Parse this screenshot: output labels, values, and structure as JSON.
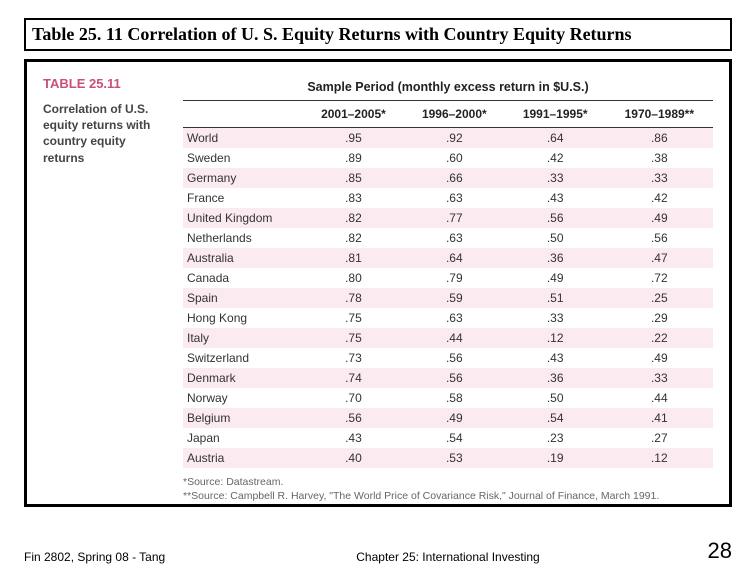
{
  "slide": {
    "title": "Table 25. 11 Correlation of U. S. Equity Returns with Country Equity Returns",
    "footer_left": "Fin 2802, Spring 08 - Tang",
    "footer_center": "Chapter 25: International Investing",
    "page_number": "28"
  },
  "table": {
    "label_number": "TABLE 25.11",
    "label_desc_line1": "Correlation of U.S.",
    "label_desc_line2": "equity returns with",
    "label_desc_line3": "country equity",
    "label_desc_line4": "returns",
    "sample_period_header": "Sample Period (monthly excess return in $U.S.)",
    "columns": [
      "2001–2005*",
      "1996–2000*",
      "1991–1995*",
      "1970–1989**"
    ],
    "rows": [
      {
        "country": "World",
        "v": [
          ".95",
          ".92",
          ".64",
          ".86"
        ]
      },
      {
        "country": "Sweden",
        "v": [
          ".89",
          ".60",
          ".42",
          ".38"
        ]
      },
      {
        "country": "Germany",
        "v": [
          ".85",
          ".66",
          ".33",
          ".33"
        ]
      },
      {
        "country": "France",
        "v": [
          ".83",
          ".63",
          ".43",
          ".42"
        ]
      },
      {
        "country": "United Kingdom",
        "v": [
          ".82",
          ".77",
          ".56",
          ".49"
        ]
      },
      {
        "country": "Netherlands",
        "v": [
          ".82",
          ".63",
          ".50",
          ".56"
        ]
      },
      {
        "country": "Australia",
        "v": [
          ".81",
          ".64",
          ".36",
          ".47"
        ]
      },
      {
        "country": "Canada",
        "v": [
          ".80",
          ".79",
          ".49",
          ".72"
        ]
      },
      {
        "country": "Spain",
        "v": [
          ".78",
          ".59",
          ".51",
          ".25"
        ]
      },
      {
        "country": "Hong Kong",
        "v": [
          ".75",
          ".63",
          ".33",
          ".29"
        ]
      },
      {
        "country": "Italy",
        "v": [
          ".75",
          ".44",
          ".12",
          ".22"
        ]
      },
      {
        "country": "Switzerland",
        "v": [
          ".73",
          ".56",
          ".43",
          ".49"
        ]
      },
      {
        "country": "Denmark",
        "v": [
          ".74",
          ".56",
          ".36",
          ".33"
        ]
      },
      {
        "country": "Norway",
        "v": [
          ".70",
          ".58",
          ".50",
          ".44"
        ]
      },
      {
        "country": "Belgium",
        "v": [
          ".56",
          ".49",
          ".54",
          ".41"
        ]
      },
      {
        "country": "Japan",
        "v": [
          ".43",
          ".54",
          ".23",
          ".27"
        ]
      },
      {
        "country": "Austria",
        "v": [
          ".40",
          ".53",
          ".19",
          ".12"
        ]
      }
    ],
    "footnotes": [
      "*Source: Datastream.",
      "**Source: Campbell R. Harvey, \"The World Price of Covariance Risk,\" Journal of Finance, March 1991."
    ],
    "styling": {
      "type": "table",
      "even_row_bg": "#fbeaf0",
      "odd_row_bg": "#ffffff",
      "label_color": "#c94f7c",
      "text_color": "#333333",
      "header_border_color": "#333333",
      "outer_border_color": "#000000",
      "background_color": "#ffffff",
      "body_fontsize": 12,
      "header_fontsize": 12.5,
      "title_fontsize": 18,
      "footnote_fontsize": 10.5,
      "country_col_width": 120,
      "font_family": "Arial"
    }
  }
}
